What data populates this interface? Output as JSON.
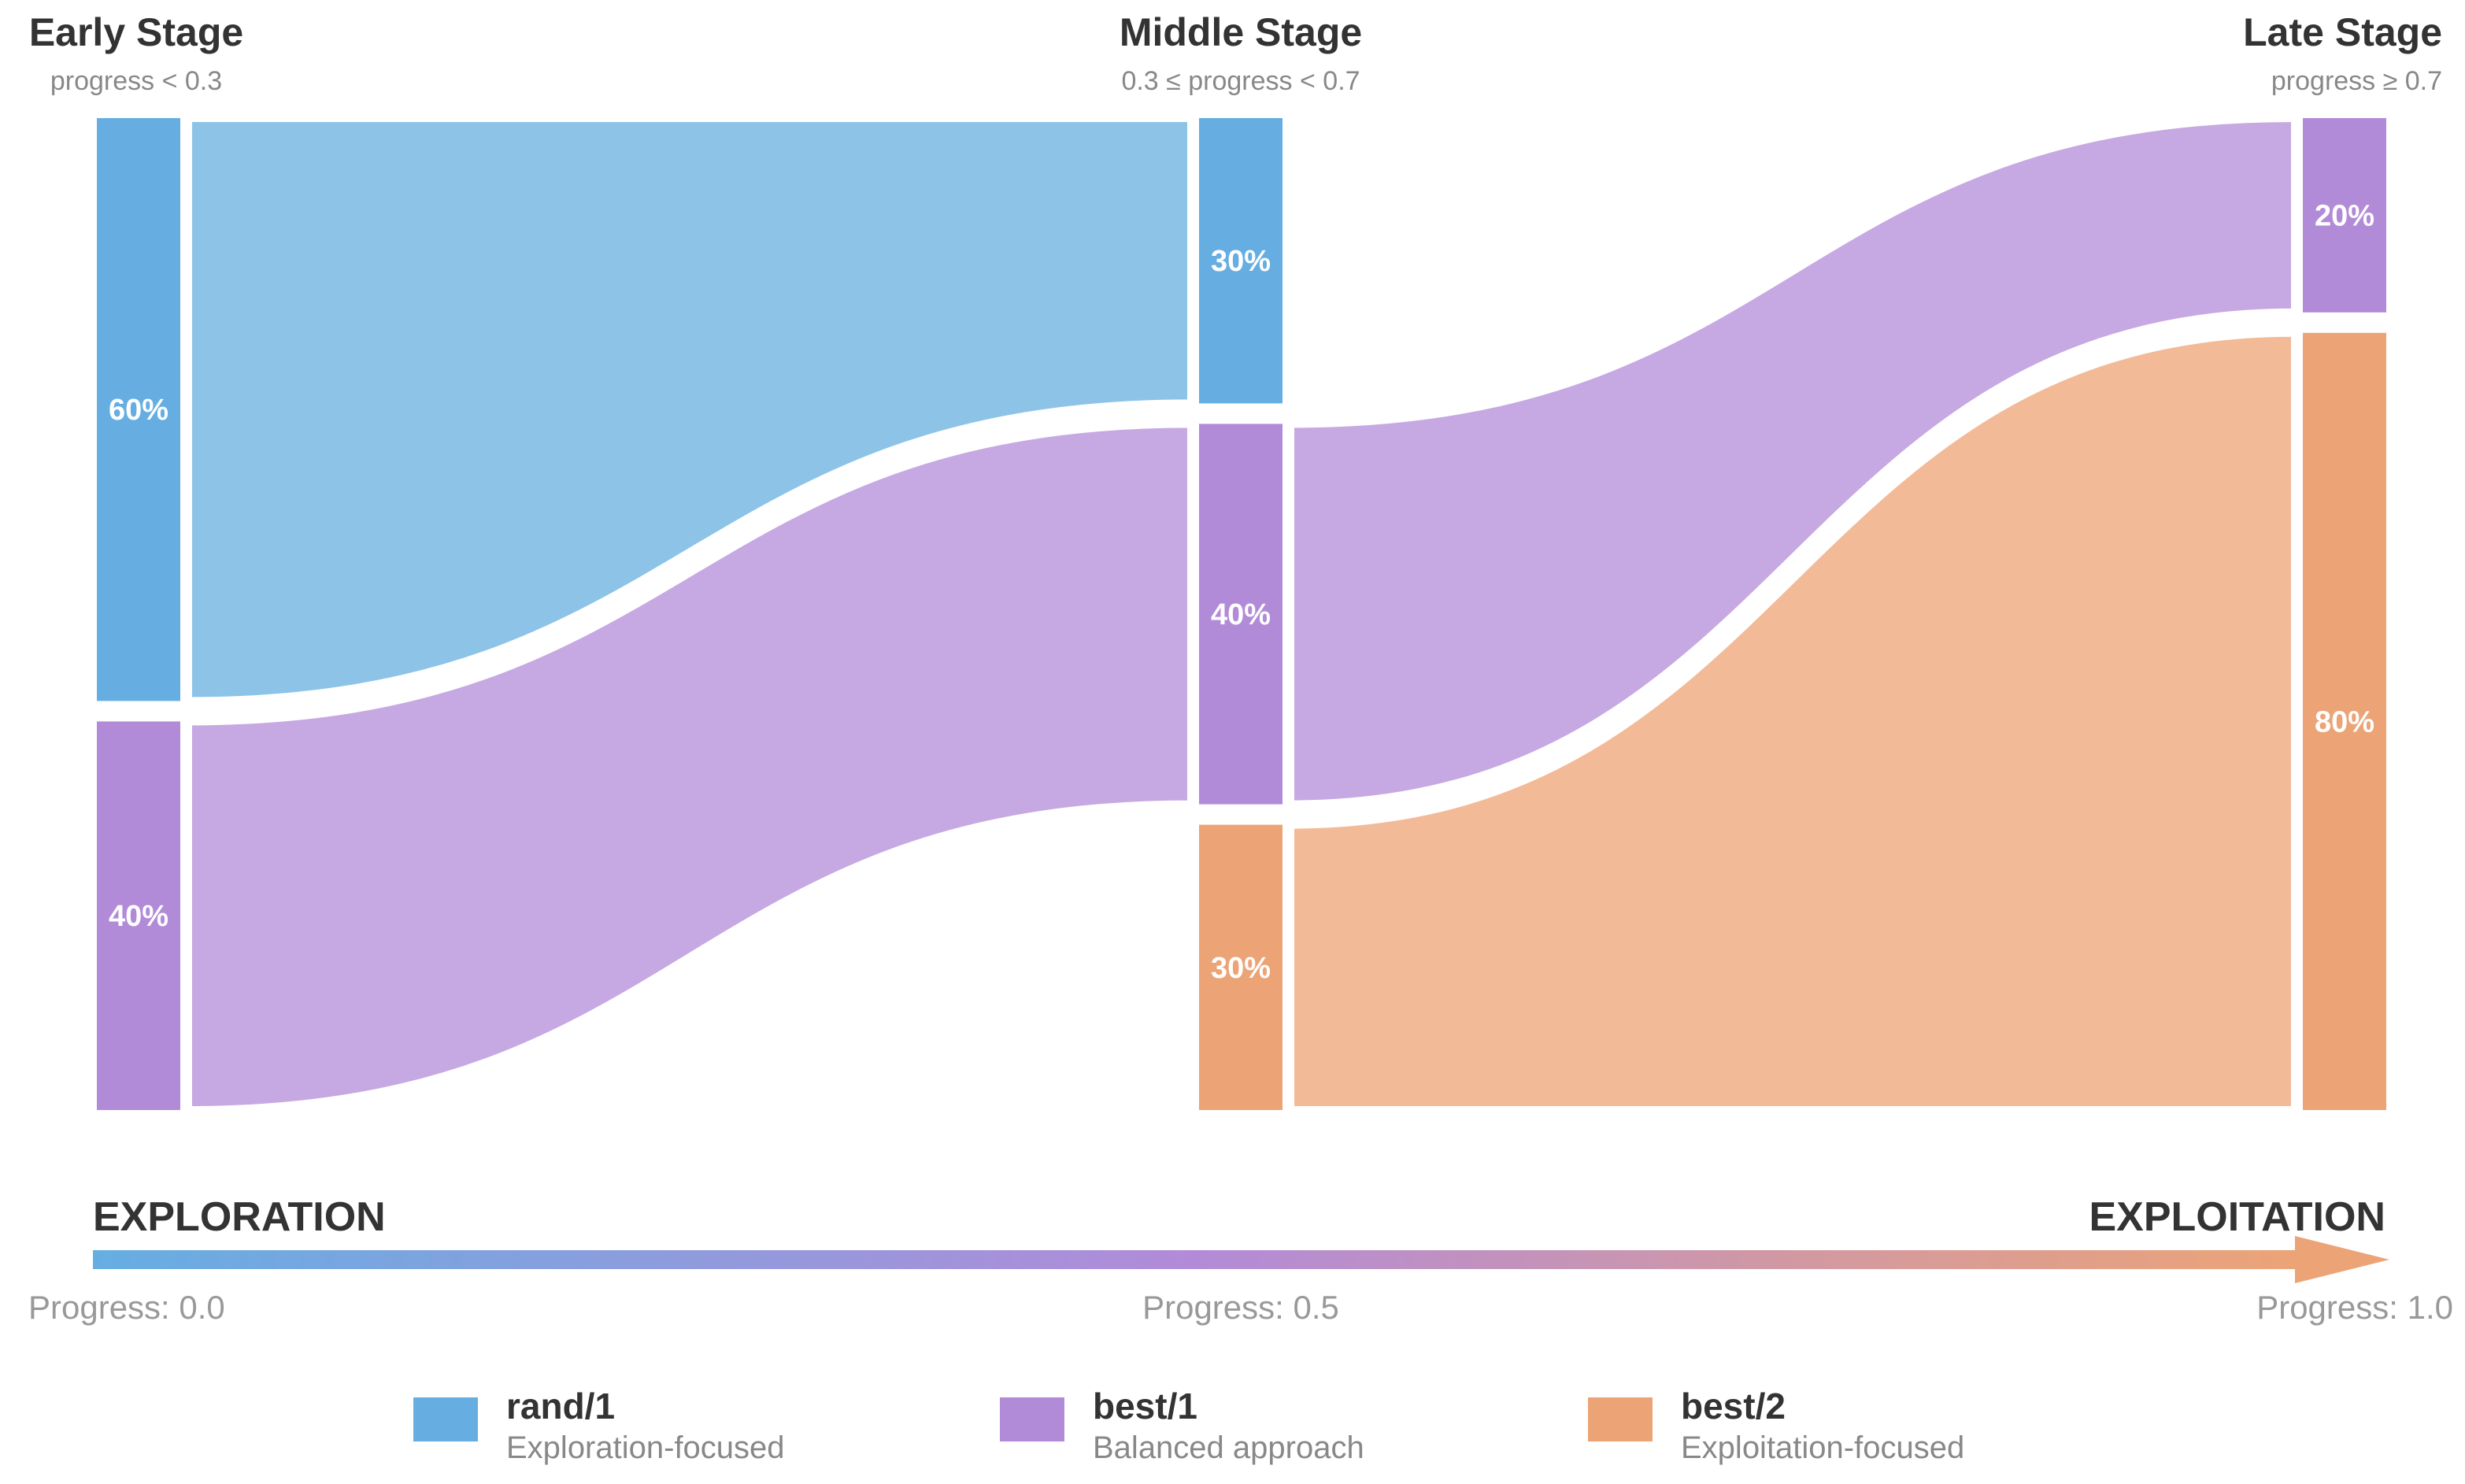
{
  "colors": {
    "rand1": "#66aee2",
    "best1": "#b28bd8",
    "best2": "#eca476",
    "rand1_flow": "#8ec3e8",
    "best1_flow": "#c6a9e2",
    "best2_flow": "#f3ba98"
  },
  "stages": [
    {
      "title": "Early Stage",
      "subtitle": "progress < 0.3"
    },
    {
      "title": "Middle Stage",
      "subtitle": "0.3 ≤ progress < 0.7"
    },
    {
      "title": "Late Stage",
      "subtitle": "progress ≥ 0.7"
    }
  ],
  "nodes": [
    {
      "id": "early-rand1",
      "stage": 0,
      "strategy": "rand1",
      "share": 60,
      "label": "60%"
    },
    {
      "id": "early-best1",
      "stage": 0,
      "strategy": "best1",
      "share": 40,
      "label": "40%"
    },
    {
      "id": "middle-rand1",
      "stage": 1,
      "strategy": "rand1",
      "share": 30,
      "label": "30%"
    },
    {
      "id": "middle-best1",
      "stage": 1,
      "strategy": "best1",
      "share": 40,
      "label": "40%"
    },
    {
      "id": "middle-best2",
      "stage": 1,
      "strategy": "best2",
      "share": 30,
      "label": "30%"
    },
    {
      "id": "late-best1",
      "stage": 2,
      "strategy": "best1",
      "share": 20,
      "label": "20%"
    },
    {
      "id": "late-best2",
      "stage": 2,
      "strategy": "best2",
      "share": 80,
      "label": "80%"
    }
  ],
  "flows": [
    {
      "from": "early-rand1",
      "to": "middle-rand1",
      "strategy": "rand1"
    },
    {
      "from": "early-best1",
      "to": "middle-best1",
      "strategy": "best1"
    },
    {
      "from": "middle-best1",
      "to": "late-best1",
      "strategy": "best1"
    },
    {
      "from": "middle-best2",
      "to": "late-best2",
      "strategy": "best2"
    }
  ],
  "axis": {
    "left_label": "EXPLORATION",
    "right_label": "EXPLOITATION",
    "ticks": [
      "Progress: 0.0",
      "Progress: 0.5",
      "Progress: 1.0"
    ]
  },
  "legend": [
    {
      "strategy": "rand1",
      "name": "rand/1",
      "description": "Exploration-focused"
    },
    {
      "strategy": "best1",
      "name": "best/1",
      "description": "Balanced approach"
    },
    {
      "strategy": "best2",
      "name": "best/2",
      "description": "Exploitation-focused"
    }
  ]
}
